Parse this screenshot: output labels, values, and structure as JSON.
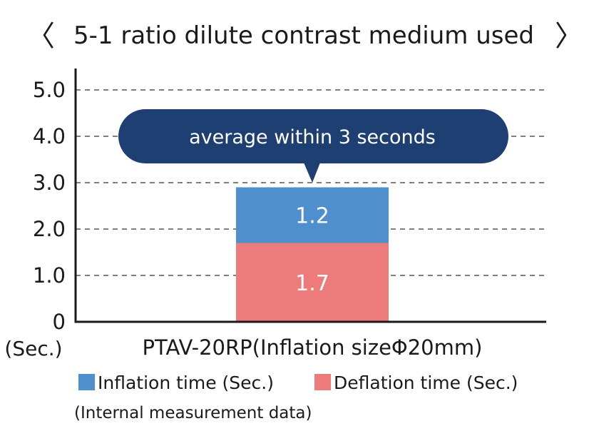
{
  "chart_data": {
    "type": "bar",
    "stacked": true,
    "title": "5-1 ratio dilute contrast medium used",
    "title_brackets": [
      "〈",
      "〉"
    ],
    "ylabel": "(Sec.)",
    "xlabel": "",
    "ylim": [
      0,
      5.0
    ],
    "yticks": [
      0,
      1.0,
      2.0,
      3.0,
      4.0,
      5.0
    ],
    "ytick_labels": [
      "0",
      "1.0",
      "2.0",
      "3.0",
      "4.0",
      "5.0"
    ],
    "grid": true,
    "categories": [
      "PTAV-20RP(Inflation sizeΦ20mm)"
    ],
    "series": [
      {
        "name": "Deflation time (Sec.)",
        "values": [
          1.7
        ],
        "labels": [
          "1.7"
        ],
        "color": "#ee7b7c"
      },
      {
        "name": "Inflation time (Sec.)",
        "values": [
          1.2
        ],
        "labels": [
          "1.2"
        ],
        "color": "#4f8fce"
      }
    ],
    "annotation": "average within 3 seconds",
    "annotation_color": "#1d3f72",
    "legend": {
      "placement": "bottom",
      "order": [
        "Inflation time (Sec.)",
        "Deflation time (Sec.)"
      ]
    },
    "note": "(Internal measurement data)"
  }
}
